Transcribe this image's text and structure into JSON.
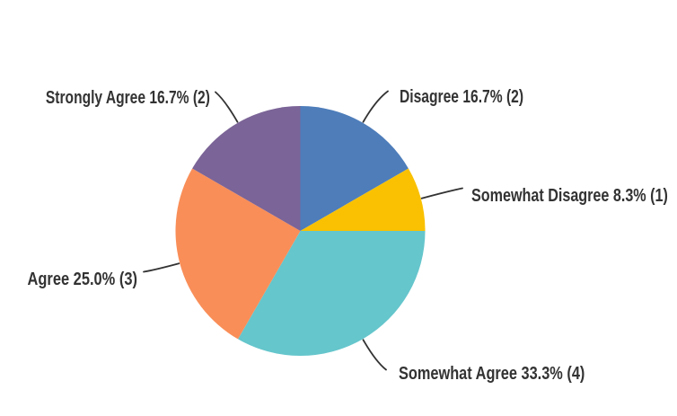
{
  "chart_data": {
    "type": "pie",
    "legend_position": "callout-labels",
    "slices": [
      {
        "label": "Disagree",
        "pct": "16.7%",
        "count": 2,
        "display": "Disagree 16.7% (2)",
        "color": "#4E7DBA"
      },
      {
        "label": "Somewhat Disagree",
        "pct": "8.3%",
        "count": 1,
        "display": "Somewhat Disagree 8.3% (1)",
        "color": "#F9C101"
      },
      {
        "label": "Somewhat Agree",
        "pct": "33.3%",
        "count": 4,
        "display": "Somewhat Agree 33.3% (4)",
        "color": "#65C6CC"
      },
      {
        "label": "Agree",
        "pct": "25.0%",
        "count": 3,
        "display": "Agree 25.0% (3)",
        "color": "#F98E58"
      },
      {
        "label": "Strongly Agree",
        "pct": "16.7%",
        "count": 2,
        "display": "Strongly Agree 16.7% (2)",
        "color": "#7B6497"
      }
    ],
    "callout_line_color": "#333333",
    "text_color": "#333333",
    "background_color": "#ffffff"
  }
}
